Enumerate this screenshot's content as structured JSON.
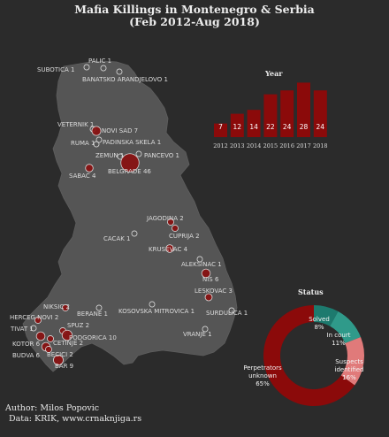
{
  "title_line1": "Mafia Killings in Montenegro & Serbia",
  "title_line2": "(Feb 2012-Aug 2018)",
  "credit_author": "Author: Milos Popovic",
  "credit_data": "Data: KRIK, www.crnaknjiga.rs",
  "colors": {
    "background": "#2b2b2b",
    "land": "#555555",
    "bubble": "#8b1010",
    "bar": "#8b0a0a",
    "solved": "#1d7a6e",
    "court": "#2f9a8a",
    "suspects": "#e07a7a",
    "unknown": "#8b0a0a"
  },
  "places": [
    {
      "label": "PALIC 1",
      "count": 1
    },
    {
      "label": "SUBOTICA 1",
      "count": 1
    },
    {
      "label": "BANATSKO ARANDJELOVO 1",
      "count": 1
    },
    {
      "label": "VETERNIK 1",
      "count": 1
    },
    {
      "label": "NOVI SAD 7",
      "count": 7
    },
    {
      "label": "RUMA 1",
      "count": 1
    },
    {
      "label": "PADINSKA SKELA 1",
      "count": 1
    },
    {
      "label": "ZEMUN 1",
      "count": 1
    },
    {
      "label": "PANCEVO 1",
      "count": 1
    },
    {
      "label": "SABAC 4",
      "count": 4
    },
    {
      "label": "BELGRADE 46",
      "count": 46
    },
    {
      "label": "JAGODINA 2",
      "count": 2
    },
    {
      "label": "CACAK 1",
      "count": 1
    },
    {
      "label": "CUPRIJA 2",
      "count": 2
    },
    {
      "label": "KRUSEVAC 4",
      "count": 4
    },
    {
      "label": "ALEKSINAC 1",
      "count": 1
    },
    {
      "label": "NIS 6",
      "count": 6
    },
    {
      "label": "LESKOVAC 3",
      "count": 3
    },
    {
      "label": "NIKSIC 2",
      "count": 2
    },
    {
      "label": "HERCEG NOVI 2",
      "count": 2
    },
    {
      "label": "BERANE 1",
      "count": 1
    },
    {
      "label": "KOSOVSKA MITROVICA 1",
      "count": 1
    },
    {
      "label": "SURDULICA 1",
      "count": 1
    },
    {
      "label": "TIVAT 1",
      "count": 1
    },
    {
      "label": "SPUZ 2",
      "count": 2
    },
    {
      "label": "KOTOR 6",
      "count": 6
    },
    {
      "label": "CETINJE 2",
      "count": 2
    },
    {
      "label": "PODGORICA 10",
      "count": 10
    },
    {
      "label": "BUDVA 6",
      "count": 6
    },
    {
      "label": "BECICI 2",
      "count": 2
    },
    {
      "label": "BAR 9",
      "count": 9
    },
    {
      "label": "VRANJE 1",
      "count": 1
    }
  ],
  "chart_data": [
    {
      "type": "bar",
      "title": "Year",
      "categories": [
        "2012",
        "2013",
        "2014",
        "2015",
        "2016",
        "2017",
        "2018"
      ],
      "values": [
        7,
        12,
        14,
        22,
        24,
        28,
        24
      ]
    },
    {
      "type": "pie",
      "title": "Status",
      "slices": [
        {
          "label": "Solved\n8%",
          "value": 8
        },
        {
          "label": "In court\n11%",
          "value": 11
        },
        {
          "label": "Suspects\nidentified\n16%",
          "value": 16
        },
        {
          "label": "Perpetrators\nunknown\n65%",
          "value": 65
        }
      ]
    }
  ]
}
